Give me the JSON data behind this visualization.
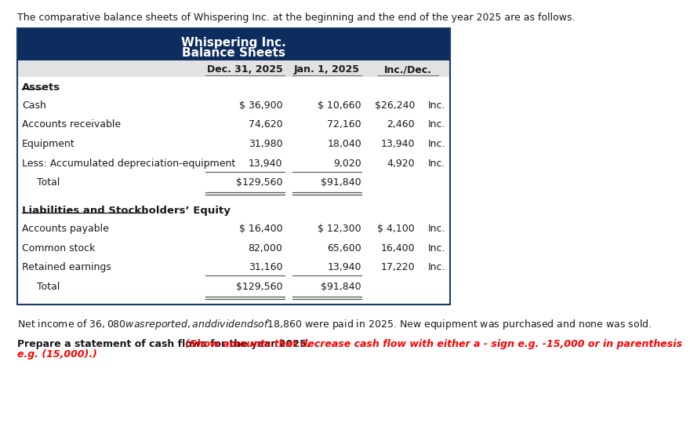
{
  "intro_text": "The comparative balance sheets of Whispering Inc. at the beginning and the end of the year 2025 are as follows.",
  "title_line1": "Whispering Inc.",
  "title_line2": "Balance Sheets",
  "header_bg": "#0d2d5e",
  "header_text_color": "#ffffff",
  "col_header_bg": "#e2e2e2",
  "col_headers": [
    "Dec. 31, 2025",
    "Jan. 1, 2025",
    "Inc./Dec."
  ],
  "sections": [
    {
      "label": "Assets",
      "rows": [
        {
          "label": "Cash",
          "dec31": "$ 36,900",
          "jan1": "$ 10,660",
          "inc_num": "$26,240",
          "inc_lbl": "Inc.",
          "total": false
        },
        {
          "label": "Accounts receivable",
          "dec31": "74,620",
          "jan1": "72,160",
          "inc_num": "2,460",
          "inc_lbl": "Inc.",
          "total": false
        },
        {
          "label": "Equipment",
          "dec31": "31,980",
          "jan1": "18,040",
          "inc_num": "13,940",
          "inc_lbl": "Inc.",
          "total": false
        },
        {
          "label": "Less: Accumulated depreciation-equipment",
          "dec31": "13,940",
          "jan1": "9,020",
          "inc_num": "4,920",
          "inc_lbl": "Inc.",
          "total": false
        },
        {
          "label": "Total",
          "dec31": "$129,560",
          "jan1": "$91,840",
          "inc_num": "",
          "inc_lbl": "",
          "total": true,
          "indent": 25
        }
      ]
    },
    {
      "label": "Liabilities and Stockholders’ Equity",
      "rows": [
        {
          "label": "Accounts payable",
          "dec31": "$ 16,400",
          "jan1": "$ 12,300",
          "inc_num": "$ 4,100",
          "inc_lbl": "Inc.",
          "total": false
        },
        {
          "label": "Common stock",
          "dec31": "82,000",
          "jan1": "65,600",
          "inc_num": "16,400",
          "inc_lbl": "Inc.",
          "total": false
        },
        {
          "label": "Retained earnings",
          "dec31": "31,160",
          "jan1": "13,940",
          "inc_num": "17,220",
          "inc_lbl": "Inc.",
          "total": false
        },
        {
          "label": "Total",
          "dec31": "$129,560",
          "jan1": "$91,840",
          "inc_num": "",
          "inc_lbl": "",
          "total": true,
          "indent": 25
        }
      ]
    }
  ],
  "footer1": "Net income of $36,080 was reported, and dividends of $18,860 were paid in 2025. New equipment was purchased and none was sold.",
  "footer2_black": "Prepare a statement of cash flows for the year 2025. ",
  "footer2_red": "(Show amounts that decrease cash flow with either a - sign e.g. -15,000 or in parenthesis",
  "footer2_red2": "e.g. (15,000).)",
  "bg_color": "#ffffff",
  "border_color": "#1a3a6b",
  "text_color": "#1a1a1a",
  "line_color": "#555555"
}
